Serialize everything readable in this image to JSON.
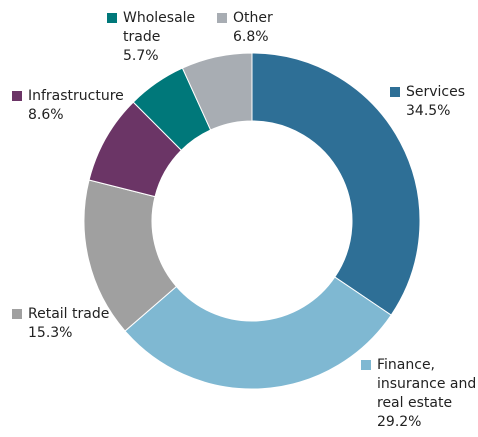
{
  "chart_data": {
    "type": "donut",
    "categories": [
      "Services",
      "Finance, insurance and real estate",
      "Retail trade",
      "Infrastructure",
      "Wholesale trade",
      "Other"
    ],
    "values": [
      34.5,
      29.2,
      15.3,
      8.6,
      5.7,
      6.8
    ],
    "value_labels": [
      "34.5%",
      "29.2%",
      "15.3%",
      "8.6%",
      "5.7%",
      "6.8%"
    ],
    "colors": [
      "#2e6f96",
      "#7fb8d2",
      "#a0a0a0",
      "#6b3566",
      "#00787a",
      "#a8adb3"
    ]
  }
}
